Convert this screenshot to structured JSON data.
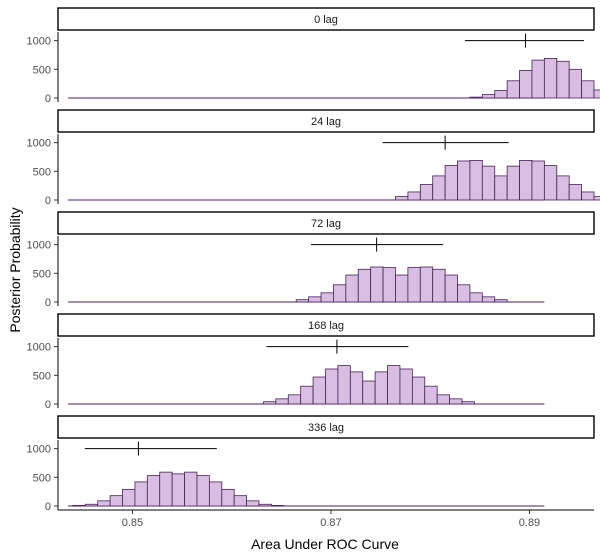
{
  "chart_data": {
    "type": "histogram",
    "xlabel": "Area Under ROC Curve",
    "ylabel": "Posterior Probability",
    "xlim": [
      0.8425,
      0.8965
    ],
    "xticks": [
      0.85,
      0.87,
      0.89
    ],
    "xtick_labels": [
      "0.85",
      "0.87",
      "0.89"
    ],
    "ylim": [
      0,
      1150
    ],
    "yticks": [
      0,
      500,
      1000
    ],
    "ytick_labels": [
      "0",
      "500",
      "1000"
    ],
    "bin_width": 0.00125,
    "support": [
      0.8435,
      0.8915
    ],
    "grid": false,
    "colors": {
      "fill": "#d8bfe2",
      "outline": "#4b1e5c",
      "strip": "#ffffff",
      "baseline": "#4b1e5c"
    },
    "panels": [
      {
        "label": "0 lag",
        "interval_low": 0.8835,
        "interval_mean": 0.8896,
        "interval_high": 0.8955,
        "interval_y": 1000,
        "bin_starts": [
          0.884,
          0.88525,
          0.8865,
          0.88775,
          0.889,
          0.89025,
          0.8915,
          0.89275,
          0.894
        ],
        "bin_values": [
          15,
          60,
          130,
          300,
          480,
          660,
          690,
          640,
          500
        ],
        "tail_bins": [
          0.89525,
          0.8965
        ],
        "tail_values": [
          300,
          140
        ]
      },
      {
        "label": "24 lag",
        "interval_low": 0.8752,
        "interval_mean": 0.8815,
        "interval_high": 0.8879,
        "interval_y": 1000,
        "bin_starts": [
          0.8765,
          0.87775,
          0.879,
          0.88025,
          0.8815,
          0.88275,
          0.884,
          0.88525,
          0.8865
        ],
        "bin_values": [
          60,
          140,
          270,
          420,
          600,
          680,
          690,
          590,
          420
        ],
        "tail_bins": [],
        "tail_values": []
      },
      {
        "label": "72 lag",
        "interval_low": 0.868,
        "interval_mean": 0.8746,
        "interval_high": 0.8813,
        "interval_y": 1000,
        "bin_starts": [
          0.8665,
          0.86775,
          0.869,
          0.87025,
          0.8715,
          0.87275,
          0.874,
          0.87525,
          0.8765
        ],
        "bin_values": [
          40,
          90,
          160,
          300,
          470,
          570,
          610,
          600,
          470
        ],
        "tail_bins": [],
        "tail_values": []
      },
      {
        "label": "168 lag",
        "interval_low": 0.8635,
        "interval_mean": 0.8706,
        "interval_high": 0.8778,
        "interval_y": 1000,
        "bin_starts": [
          0.8632,
          0.86445,
          0.8657,
          0.86695,
          0.8682,
          0.86945,
          0.8707,
          0.87195,
          0.8732
        ],
        "bin_values": [
          40,
          90,
          160,
          310,
          470,
          610,
          670,
          560,
          400
        ],
        "tail_bins": [],
        "tail_values": []
      },
      {
        "label": "336 lag",
        "interval_low": 0.8452,
        "interval_mean": 0.8506,
        "interval_high": 0.8585,
        "interval_y": 1000,
        "bin_starts": [
          0.844,
          0.84525,
          0.8465,
          0.84775,
          0.849,
          0.85025,
          0.8515,
          0.85275,
          0.854
        ],
        "bin_values": [
          10,
          30,
          90,
          180,
          290,
          420,
          530,
          590,
          560
        ],
        "tail_bins": [],
        "tail_values": []
      }
    ]
  }
}
